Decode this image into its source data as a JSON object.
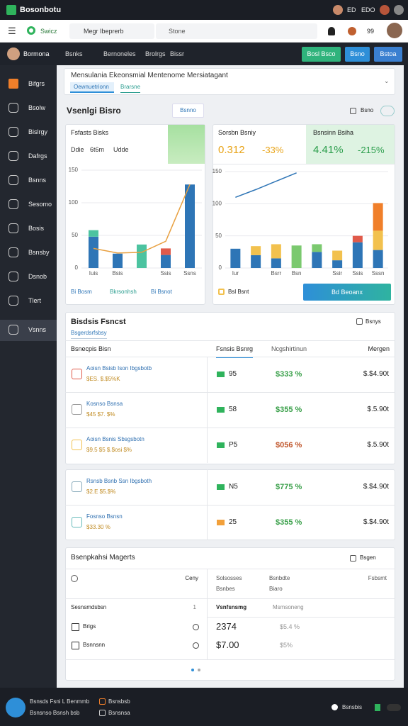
{
  "top_bar": {
    "app_name": "Bosonbotu",
    "items": [
      "ED",
      "EDO"
    ]
  },
  "nav_bar": {
    "brand": "Swicz",
    "search": "Megr Ibeprerb",
    "search2": "Stone",
    "count": "99"
  },
  "tool_bar": {
    "user": "Bormona",
    "tabs": [
      "Bsnks",
      "Bernoneles",
      "Brolrgs",
      "Bissr"
    ],
    "buttons": [
      "Bosl Bsco",
      "Bsno",
      "Bstoa"
    ]
  },
  "sidebar": [
    "Bifgrs",
    "Bsolw",
    "Bislrgy",
    "Dafrgs",
    "Bsnns",
    "Sesomo",
    "Bosis",
    "Bsnsby",
    "Dsnob",
    "Tlert",
    "Vsnns"
  ],
  "header_card": {
    "title": "Mensulania Ekeonsmial Mentenome Mersiatagant",
    "tabs": [
      "Oewnuetrionn",
      "Brarsne"
    ]
  },
  "overview": {
    "title": "Vsenlgi Bisro",
    "button": "Bsnno",
    "action": "Bsno"
  },
  "left_chart": {
    "title": "Fsfasts Bisks",
    "stats": [
      "Ddie",
      "6t6m",
      "Udde"
    ],
    "ylim": [
      0,
      150
    ],
    "yticks": [
      0,
      50,
      100,
      150
    ],
    "categories": [
      "Iuis",
      "Bsis",
      null,
      "Ssis",
      "Ssns"
    ],
    "series": [
      {
        "color": "#2e75b6",
        "values": [
          48,
          22,
          0,
          20,
          128
        ]
      },
      {
        "color": "#4cc3a0",
        "values": [
          10,
          0,
          36,
          0,
          0
        ]
      },
      {
        "color": "#e05a4a",
        "values": [
          0,
          0,
          0,
          10,
          0
        ]
      }
    ],
    "line": {
      "color": "#e8a040",
      "values": [
        30,
        23,
        24,
        41,
        128
      ]
    },
    "legend": [
      "Bi Bosm",
      "Bkrsonhsh",
      "Bi Bsnot"
    ]
  },
  "middle_panel": {
    "kpis": [
      {
        "title": "Sorsbn Bsniy",
        "values": [
          "0.312",
          "-33%"
        ]
      },
      {
        "title": "Bsnsinn Bsiha",
        "values": [
          "4.41%",
          "-215%"
        ]
      }
    ],
    "chart": {
      "ylim": [
        0,
        150
      ],
      "yticks": [
        0,
        50,
        100,
        150
      ],
      "categories": [
        "Iur",
        null,
        "Bsrr",
        "Bsn",
        null,
        "Ssir",
        "Ssis",
        "Sssn"
      ],
      "series": [
        {
          "color": "#2e75b6",
          "values": [
            30,
            20,
            15,
            0,
            25,
            12,
            40,
            28
          ]
        },
        {
          "color": "#f2c14e",
          "values": [
            0,
            14,
            22,
            0,
            0,
            15,
            0,
            30
          ]
        },
        {
          "color": "#7bc96f",
          "values": [
            0,
            0,
            0,
            35,
            12,
            0,
            0,
            0
          ]
        },
        {
          "color": "#e05a4a",
          "values": [
            0,
            0,
            0,
            0,
            0,
            0,
            10,
            0
          ]
        },
        {
          "color": "#f07f2a",
          "values": [
            0,
            0,
            0,
            0,
            0,
            0,
            0,
            43
          ]
        }
      ],
      "line": {
        "color": "#2e75b6",
        "values": [
          110,
          122,
          135,
          148,
          null,
          null,
          null,
          null
        ]
      }
    },
    "footer": "Bsl Bsnt",
    "button": "Bd Beoanx"
  },
  "forecast": {
    "title": "Bisdsis Fsncst",
    "subtitle": "Bsgerdsrfsbsy",
    "action": "Bsnys",
    "columns": [
      "Bsnecpis Bisn",
      "Fsnsis Bsnrg",
      "Ncgshirtinun",
      "Mergen"
    ],
    "rows": [
      {
        "name": "Aoisn Bsisb Ison Ibgsbotb",
        "detail": "$ES. $.$5%K",
        "count": "95",
        "change": "$333 %",
        "margin": "$.$4.90t"
      },
      {
        "name": "Kosnso Bsnsa",
        "detail": "$45 $7. $%",
        "count": "58",
        "change": "$355 %",
        "margin": "$.5.90t"
      },
      {
        "name": "Aoisn Bsnis Sbsgsbotn",
        "detail": "$9.5 $5 $.$osi $%",
        "count": "P5",
        "change": "$056 %",
        "margin": "$.5.90t"
      },
      {
        "name": "Rsnsb Bsnb Ssn Ibgsboth",
        "detail": "$2.E $5.$%",
        "count": "N5",
        "change": "$775 %",
        "margin": "$.$4.90t"
      },
      {
        "name": "Fosnso Bsnsn",
        "detail": "$33.30 %",
        "count": "25",
        "change": "$355 %",
        "margin": "$.$4.90t"
      }
    ]
  },
  "markets": {
    "title": "Bsenpkahsi Magerts",
    "action": "Bsgen",
    "label": "Ceny",
    "columns": [
      "Solsosses",
      "Bsnbes",
      "Bsnbdte",
      "Biaro",
      "Fsbsmt"
    ],
    "group": "Sesnsmdsbsn",
    "group_count": "1",
    "filter": "Vsnfsnsmg",
    "filter2": "Msmsoneng",
    "items": [
      {
        "name": "Brigs",
        "value": "2374",
        "change": "$5.4 %"
      },
      {
        "name": "Bsnnsnn",
        "value": "$7.00",
        "change": "$5%"
      }
    ]
  },
  "footer": {
    "lines": [
      "Bsnsds Fsni L Benmmb",
      "Bsnsnso Bsnsh bsb"
    ],
    "links": [
      "Bsnsbsb",
      "Bsnsnsa"
    ],
    "status": "Bsnsbis"
  }
}
